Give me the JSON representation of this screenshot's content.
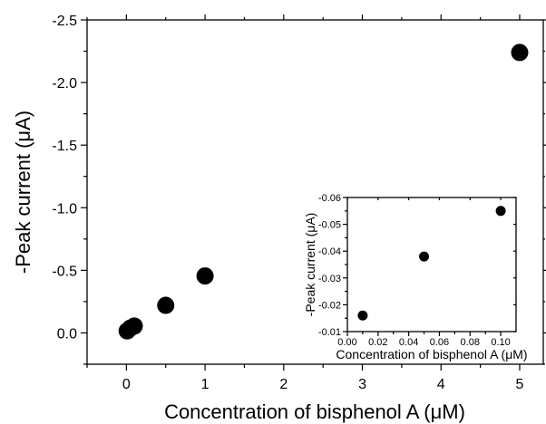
{
  "chart_data": [
    {
      "type": "scatter",
      "xlabel": "Concentration of bisphenol A (μM)",
      "ylabel": "-Peak current (μA)",
      "xlim": [
        -0.5,
        5.3
      ],
      "ylim": [
        0.25,
        -2.5
      ],
      "x_ticks": [
        "0",
        "1",
        "2",
        "3",
        "4",
        "5"
      ],
      "y_ticks": [
        "-2.5",
        "-2.0",
        "-1.5",
        "-1.0",
        "-0.5",
        "0.0"
      ],
      "series": [
        {
          "x": [
            0.01,
            0.05,
            0.1,
            0.5,
            1.0,
            5.0
          ],
          "y": [
            -0.016,
            -0.038,
            -0.055,
            -0.22,
            -0.455,
            -2.24
          ]
        }
      ]
    },
    {
      "type": "scatter",
      "inset": true,
      "xlabel": "Concentration of bisphenol A (μM)",
      "ylabel": "-Peak current (μA)",
      "xlim": [
        0.0,
        0.11
      ],
      "ylim": [
        -0.01,
        -0.06
      ],
      "x_ticks": [
        "0.00",
        "0.02",
        "0.04",
        "0.06",
        "0.08",
        "0.10"
      ],
      "y_ticks": [
        "-0.01",
        "-0.02",
        "-0.03",
        "-0.04",
        "-0.05",
        "-0.06"
      ],
      "series": [
        {
          "x": [
            0.01,
            0.05,
            0.1
          ],
          "y": [
            -0.016,
            -0.038,
            -0.055
          ]
        }
      ]
    }
  ]
}
